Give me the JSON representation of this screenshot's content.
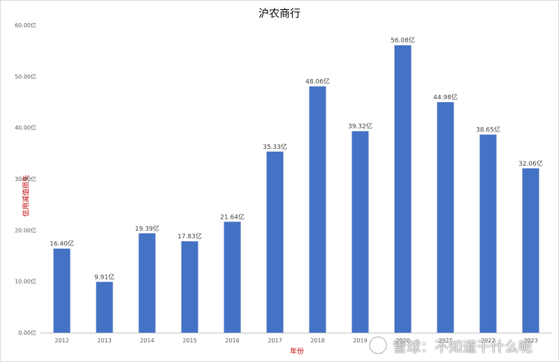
{
  "chart_data": {
    "type": "bar",
    "title": "沪农商行",
    "xlabel": "年份",
    "ylabel": "信用减值损失",
    "categories": [
      "2012",
      "2013",
      "2014",
      "2015",
      "2016",
      "2017",
      "2018",
      "2019",
      "2020",
      "2021",
      "2022",
      "2023"
    ],
    "values": [
      16.4,
      9.91,
      19.39,
      17.83,
      21.64,
      35.33,
      48.06,
      39.32,
      56.08,
      44.98,
      38.65,
      32.06
    ],
    "data_labels": [
      "16.40亿",
      "9.91亿",
      "19.39亿",
      "17.83亿",
      "21.64亿",
      "35.33亿",
      "48.06亿",
      "39.32亿",
      "56.08亿",
      "44.98亿",
      "38.65亿",
      "32.06亿"
    ],
    "yticks": [
      "0.00亿",
      "10.00亿",
      "20.00亿",
      "30.00亿",
      "40.00亿",
      "50.00亿",
      "60.00亿"
    ],
    "ylim": [
      0,
      60
    ],
    "unit": "亿",
    "grid": false,
    "legend": "none",
    "bar_color": "#4472c4",
    "title_color": "#000000",
    "axis_title_color": "#c00000"
  },
  "watermark": {
    "text": "雪球：不知道干什么呢",
    "icon": "snowball-logo-icon"
  }
}
